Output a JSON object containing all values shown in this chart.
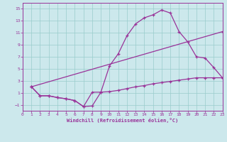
{
  "bg_color": "#cce8ec",
  "grid_color": "#99cccc",
  "line_color": "#993399",
  "spine_color": "#663366",
  "xlim": [
    0,
    23
  ],
  "ylim": [
    -2,
    16
  ],
  "xticks": [
    0,
    1,
    2,
    3,
    4,
    5,
    6,
    7,
    8,
    9,
    10,
    11,
    12,
    13,
    14,
    15,
    16,
    17,
    18,
    19,
    20,
    21,
    22,
    23
  ],
  "yticks": [
    -1,
    1,
    3,
    5,
    7,
    9,
    11,
    13,
    15
  ],
  "xlabel": "Windchill (Refroidissement éolien,°C)",
  "line1_x": [
    1,
    2,
    3,
    4,
    5,
    6,
    7,
    8,
    9,
    10,
    11,
    12,
    13,
    14,
    15,
    16,
    17,
    18,
    19,
    20,
    21,
    22,
    23
  ],
  "line1_y": [
    2.0,
    0.5,
    0.5,
    0.2,
    0.0,
    -0.3,
    -1.3,
    -1.2,
    1.1,
    5.5,
    7.5,
    10.5,
    12.5,
    13.5,
    14.0,
    14.8,
    14.3,
    11.2,
    9.5,
    7.0,
    6.8,
    5.2,
    3.5
  ],
  "line2_x": [
    1,
    2,
    3,
    4,
    5,
    6,
    7,
    8,
    9,
    10,
    11,
    12,
    13,
    14,
    15,
    16,
    17,
    18,
    19,
    20,
    21,
    22,
    23
  ],
  "line2_y": [
    2.0,
    0.5,
    0.5,
    0.2,
    0.0,
    -0.3,
    -1.3,
    1.1,
    1.1,
    1.2,
    1.4,
    1.7,
    2.0,
    2.2,
    2.5,
    2.7,
    2.9,
    3.1,
    3.3,
    3.5,
    3.5,
    3.5,
    3.5
  ],
  "line3_x": [
    1,
    23
  ],
  "line3_y": [
    2.0,
    11.2
  ]
}
